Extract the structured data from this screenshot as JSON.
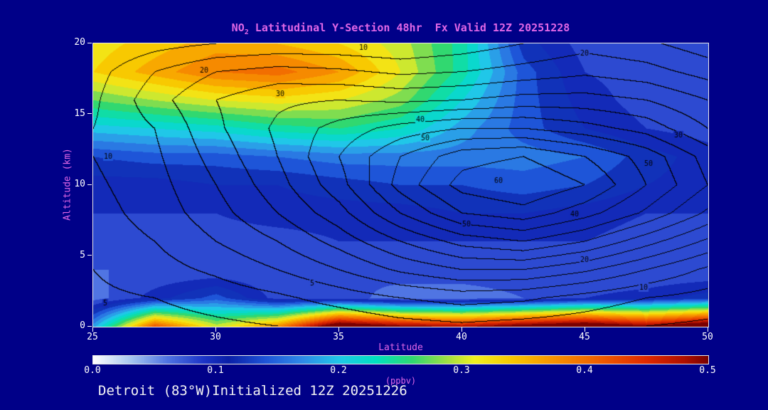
{
  "page": {
    "background": "#000088"
  },
  "title": {
    "prefix": "NO",
    "sub": "2",
    "suffix": " Latitudinal Y-Section 48hr  Fx Valid 12Z 20251228",
    "color": "#e066e6"
  },
  "footer": {
    "text": "Detroit (83°W)Initialized 12Z 20251226"
  },
  "axes": {
    "x": {
      "label": "Latitude",
      "range": [
        25,
        50
      ],
      "ticks": [
        25,
        30,
        35,
        40,
        45,
        50
      ]
    },
    "y": {
      "label": "Altitude (km)",
      "range": [
        0,
        20
      ],
      "ticks": [
        0,
        5,
        10,
        15,
        20
      ]
    }
  },
  "colorbar": {
    "label": "(ppbv)",
    "range": [
      0,
      0.5
    ],
    "ticks": [
      "0.0",
      "0.1",
      "0.2",
      "0.3",
      "0.4",
      "0.5"
    ]
  },
  "colors": {
    "background": "#000088",
    "accent_magenta": "#e066e6",
    "tick_text": "#ffffff",
    "contour_line": "#000000"
  },
  "chart_data": {
    "type": "heatmap",
    "title": "NO2 Latitudinal Y-Section 48hr Fx Valid 12Z 20251228",
    "xlabel": "Latitude",
    "ylabel": "Altitude (km)",
    "xlim": [
      25,
      50
    ],
    "ylim": [
      0,
      20
    ],
    "value_range": [
      0,
      0.5
    ],
    "value_units": "ppbv",
    "fill_levels_step": 0.02,
    "x": [
      25,
      27.5,
      30,
      32.5,
      35,
      37.5,
      40,
      42.5,
      45,
      47.5,
      50
    ],
    "y": [
      20,
      18,
      16,
      14,
      12,
      10,
      8,
      6,
      4,
      2,
      0
    ],
    "values": [
      [
        0.32,
        0.34,
        0.36,
        0.35,
        0.33,
        0.3,
        0.24,
        0.12,
        0.08,
        0.07,
        0.07
      ],
      [
        0.33,
        0.36,
        0.39,
        0.4,
        0.37,
        0.31,
        0.24,
        0.14,
        0.09,
        0.08,
        0.07
      ],
      [
        0.27,
        0.29,
        0.31,
        0.32,
        0.31,
        0.28,
        0.21,
        0.14,
        0.1,
        0.08,
        0.07
      ],
      [
        0.2,
        0.21,
        0.22,
        0.24,
        0.25,
        0.23,
        0.18,
        0.14,
        0.11,
        0.09,
        0.08
      ],
      [
        0.13,
        0.14,
        0.14,
        0.15,
        0.16,
        0.16,
        0.16,
        0.16,
        0.15,
        0.12,
        0.1
      ],
      [
        0.1,
        0.1,
        0.11,
        0.11,
        0.12,
        0.13,
        0.13,
        0.14,
        0.13,
        0.11,
        0.1
      ],
      [
        0.09,
        0.09,
        0.09,
        0.1,
        0.1,
        0.1,
        0.11,
        0.11,
        0.1,
        0.09,
        0.09
      ],
      [
        0.08,
        0.08,
        0.08,
        0.08,
        0.09,
        0.09,
        0.09,
        0.09,
        0.09,
        0.08,
        0.08
      ],
      [
        0.07,
        0.07,
        0.07,
        0.07,
        0.07,
        0.08,
        0.08,
        0.08,
        0.07,
        0.07,
        0.07
      ],
      [
        0.06,
        0.1,
        0.14,
        0.08,
        0.08,
        0.06,
        0.06,
        0.07,
        0.09,
        0.1,
        0.12
      ],
      [
        0.18,
        0.42,
        0.3,
        0.38,
        0.55,
        0.5,
        0.48,
        0.52,
        0.55,
        0.5,
        0.55
      ]
    ],
    "colormap": [
      [
        0.0,
        "#ffffff"
      ],
      [
        0.06,
        "#a8c8f0"
      ],
      [
        0.12,
        "#4f74e3"
      ],
      [
        0.18,
        "#1c35c8"
      ],
      [
        0.22,
        "#0a1fa8"
      ],
      [
        0.28,
        "#1e55d8"
      ],
      [
        0.34,
        "#2f8ae8"
      ],
      [
        0.4,
        "#20c8e8"
      ],
      [
        0.46,
        "#00e0c0"
      ],
      [
        0.52,
        "#30d870"
      ],
      [
        0.58,
        "#a8e040"
      ],
      [
        0.62,
        "#f0f020"
      ],
      [
        0.68,
        "#f8c800"
      ],
      [
        0.74,
        "#f89800"
      ],
      [
        0.82,
        "#f06000"
      ],
      [
        0.9,
        "#e02800"
      ],
      [
        0.96,
        "#b01000"
      ],
      [
        1.0,
        "#7a0000"
      ]
    ],
    "overlay_contours": {
      "levels_step": 5,
      "levels_min": 5,
      "levels_max": 65,
      "grid": [
        [
          5,
          8,
          10,
          11,
          11,
          10,
          12,
          15,
          18,
          16,
          12
        ],
        [
          8,
          15,
          20,
          22,
          21,
          19,
          20,
          22,
          24,
          22,
          18
        ],
        [
          9,
          18,
          25,
          29,
          30,
          29,
          30,
          32,
          32,
          30,
          25
        ],
        [
          10,
          15,
          24,
          31,
          37,
          42,
          45,
          45,
          42,
          38,
          30
        ],
        [
          10,
          14,
          22,
          30,
          40,
          50,
          58,
          60,
          55,
          48,
          38
        ],
        [
          9,
          13,
          20,
          28,
          38,
          52,
          62,
          65,
          60,
          50,
          40
        ],
        [
          8,
          12,
          18,
          25,
          33,
          45,
          55,
          58,
          52,
          44,
          34
        ],
        [
          7,
          10,
          15,
          20,
          27,
          35,
          42,
          45,
          40,
          32,
          24
        ],
        [
          5,
          8,
          11,
          15,
          20,
          26,
          30,
          30,
          26,
          20,
          14
        ],
        [
          4,
          5,
          7,
          9,
          12,
          15,
          17,
          16,
          13,
          10,
          8
        ],
        [
          2,
          3,
          4,
          5,
          6,
          8,
          9,
          8,
          7,
          5,
          4
        ]
      ],
      "labels": [
        {
          "lat": 36.0,
          "alt": 19.7,
          "text": "10"
        },
        {
          "lat": 29.5,
          "alt": 18.1,
          "text": "20"
        },
        {
          "lat": 45.0,
          "alt": 19.3,
          "text": "20"
        },
        {
          "lat": 32.6,
          "alt": 16.4,
          "text": "30"
        },
        {
          "lat": 25.6,
          "alt": 12.0,
          "text": "10"
        },
        {
          "lat": 38.3,
          "alt": 14.6,
          "text": "40"
        },
        {
          "lat": 38.5,
          "alt": 13.3,
          "text": "50"
        },
        {
          "lat": 48.8,
          "alt": 13.5,
          "text": "30"
        },
        {
          "lat": 47.6,
          "alt": 11.5,
          "text": "50"
        },
        {
          "lat": 41.5,
          "alt": 10.3,
          "text": "60"
        },
        {
          "lat": 44.6,
          "alt": 7.9,
          "text": "40"
        },
        {
          "lat": 40.2,
          "alt": 7.2,
          "text": "50"
        },
        {
          "lat": 45.0,
          "alt": 4.7,
          "text": "20"
        },
        {
          "lat": 47.4,
          "alt": 2.7,
          "text": "10"
        },
        {
          "lat": 33.9,
          "alt": 3.0,
          "text": "5"
        },
        {
          "lat": 25.5,
          "alt": 1.6,
          "text": "5"
        }
      ]
    }
  }
}
